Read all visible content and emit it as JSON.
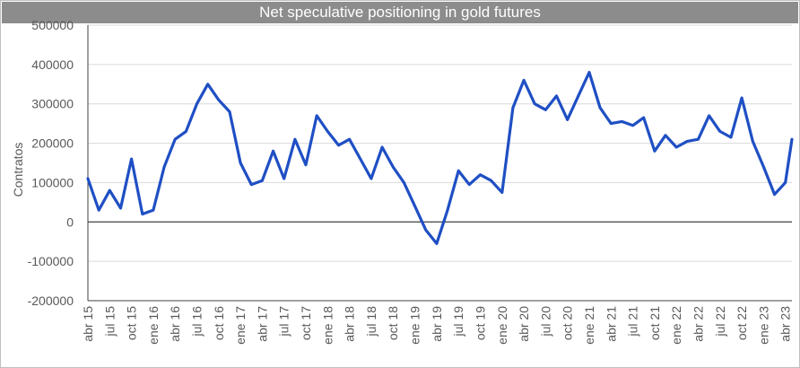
{
  "chart_data": {
    "type": "line",
    "title": "Net speculative positioning in gold futures",
    "ylabel": "Contratos",
    "xlabel": "",
    "ylim": [
      -200000,
      500000
    ],
    "y_ticks": [
      500000,
      400000,
      300000,
      200000,
      100000,
      0,
      -100000,
      -200000
    ],
    "y_tick_labels": [
      "500000",
      "400000",
      "300000",
      "200000",
      "100000",
      "0",
      "-100000",
      "-200000"
    ],
    "x_tick_labels": [
      "abr 15",
      "jul 15",
      "oct 15",
      "ene 16",
      "abr 16",
      "jul 16",
      "oct 16",
      "ene 17",
      "abr 17",
      "jul 17",
      "oct 17",
      "ene 18",
      "abr 18",
      "jul 18",
      "oct 18",
      "ene 19",
      "abr 19",
      "jul 19",
      "oct 19",
      "ene 20",
      "abr 20",
      "jul 20",
      "oct 20",
      "ene 21",
      "abr 21",
      "jul 21",
      "oct 21",
      "ene 22",
      "abr 22",
      "jul 22",
      "oct 22",
      "ene 23",
      "abr 23"
    ],
    "grid": true,
    "line_color": "#1f4fc4",
    "series": [
      {
        "name": "",
        "x": [
          0,
          0.5,
          1,
          1.5,
          2,
          2.5,
          3,
          3.5,
          4,
          4.5,
          5,
          5.5,
          6,
          6.5,
          7,
          7.5,
          8,
          8.5,
          9,
          9.5,
          10,
          10.5,
          11,
          11.5,
          12,
          12.5,
          13,
          13.5,
          14,
          14.5,
          15,
          15.5,
          16,
          16.5,
          17,
          17.5,
          18,
          18.5,
          19,
          19.5,
          20,
          20.5,
          21,
          21.5,
          22,
          22.5,
          23,
          23.5,
          24,
          24.5,
          25,
          25.5,
          26,
          26.5,
          27,
          27.5,
          28,
          28.5,
          29,
          29.5,
          30,
          30.5,
          31,
          31.5,
          32,
          32.3
        ],
        "y": [
          110000,
          30000,
          80000,
          35000,
          160000,
          20000,
          30000,
          140000,
          210000,
          230000,
          300000,
          350000,
          310000,
          280000,
          150000,
          95000,
          105000,
          180000,
          110000,
          210000,
          145000,
          270000,
          230000,
          195000,
          210000,
          160000,
          110000,
          190000,
          140000,
          100000,
          40000,
          -20000,
          -55000,
          30000,
          130000,
          95000,
          120000,
          105000,
          75000,
          290000,
          360000,
          300000,
          285000,
          320000,
          260000,
          320000,
          380000,
          290000,
          250000,
          255000,
          245000,
          265000,
          180000,
          220000,
          190000,
          205000,
          210000,
          270000,
          230000,
          215000,
          315000,
          205000,
          140000,
          70000,
          100000,
          210000
        ]
      }
    ]
  }
}
